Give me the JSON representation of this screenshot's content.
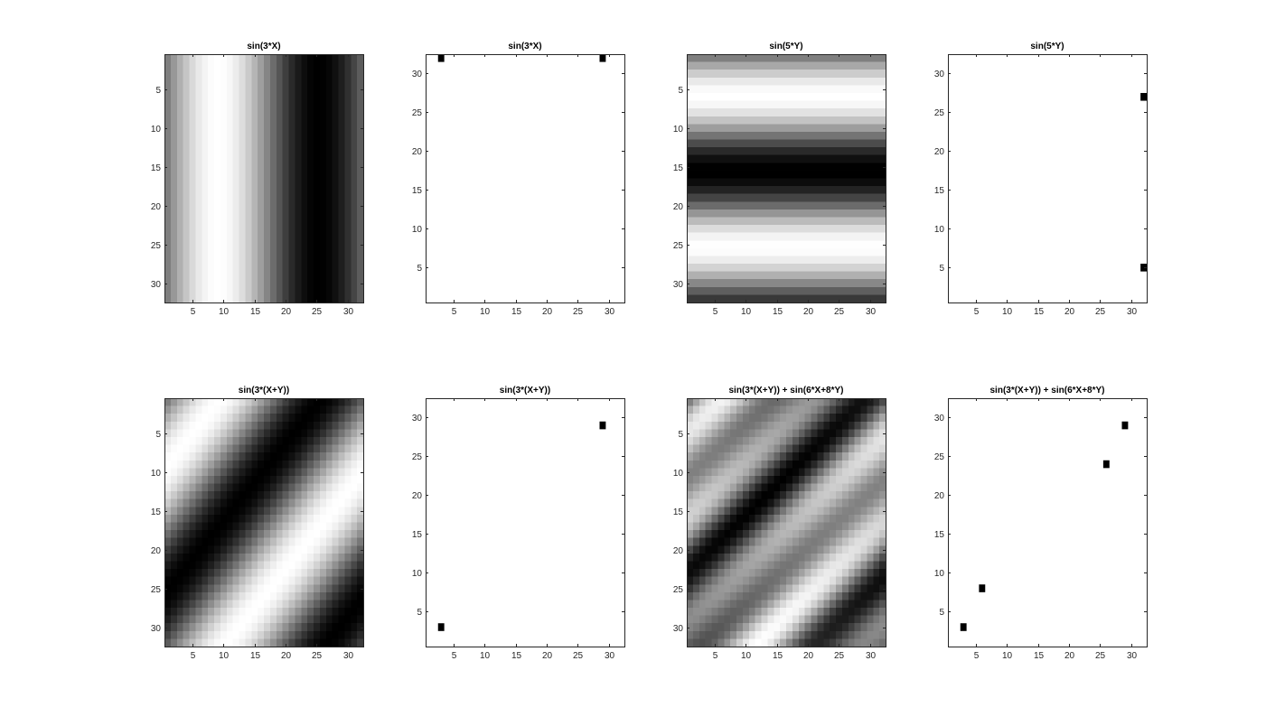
{
  "figure": {
    "background": "#ffffff",
    "axis_color": "#262626"
  },
  "chart_data": [
    {
      "type": "heatmap",
      "title": "sin(3*X)",
      "colormap": "gray",
      "grid_size": [
        32,
        32
      ],
      "formula": "sin(3*X)",
      "x_range": [
        0,
        2
      ],
      "y_range": [
        0,
        2
      ],
      "xlim": [
        0.5,
        32.5
      ],
      "ylim": [
        0.5,
        32.5
      ],
      "y_direction": "reverse",
      "xticks": [
        5,
        10,
        15,
        20,
        25,
        30
      ],
      "yticks": [
        5,
        10,
        15,
        20,
        25,
        30
      ]
    },
    {
      "type": "scatter",
      "title": "sin(3*X)",
      "marker": "square",
      "marker_color": "#000000",
      "points": [
        [
          3,
          32
        ],
        [
          29,
          32
        ]
      ],
      "xlim": [
        0.5,
        32.5
      ],
      "ylim": [
        0.5,
        32.5
      ],
      "y_direction": "normal",
      "xticks": [
        5,
        10,
        15,
        20,
        25,
        30
      ],
      "yticks": [
        5,
        10,
        15,
        20,
        25,
        30
      ]
    },
    {
      "type": "heatmap",
      "title": "sin(5*Y)",
      "colormap": "gray",
      "grid_size": [
        32,
        32
      ],
      "formula": "sin(5*Y)",
      "x_range": [
        0,
        2
      ],
      "y_range": [
        0,
        2
      ],
      "xlim": [
        0.5,
        32.5
      ],
      "ylim": [
        0.5,
        32.5
      ],
      "y_direction": "reverse",
      "xticks": [
        5,
        10,
        15,
        20,
        25,
        30
      ],
      "yticks": [
        5,
        10,
        15,
        20,
        25,
        30
      ]
    },
    {
      "type": "scatter",
      "title": "sin(5*Y)",
      "marker": "square",
      "marker_color": "#000000",
      "points": [
        [
          32,
          27
        ],
        [
          32,
          5
        ]
      ],
      "xlim": [
        0.5,
        32.5
      ],
      "ylim": [
        0.5,
        32.5
      ],
      "y_direction": "normal",
      "xticks": [
        5,
        10,
        15,
        20,
        25,
        30
      ],
      "yticks": [
        5,
        10,
        15,
        20,
        25,
        30
      ]
    },
    {
      "type": "heatmap",
      "title": "sin(3*(X+Y))",
      "colormap": "gray",
      "grid_size": [
        32,
        32
      ],
      "formula": "sin(3*(X+Y))",
      "x_range": [
        0,
        2
      ],
      "y_range": [
        0,
        2
      ],
      "xlim": [
        0.5,
        32.5
      ],
      "ylim": [
        0.5,
        32.5
      ],
      "y_direction": "reverse",
      "xticks": [
        5,
        10,
        15,
        20,
        25,
        30
      ],
      "yticks": [
        5,
        10,
        15,
        20,
        25,
        30
      ]
    },
    {
      "type": "scatter",
      "title": "sin(3*(X+Y))",
      "marker": "square",
      "marker_color": "#000000",
      "points": [
        [
          29,
          29
        ],
        [
          3,
          3
        ]
      ],
      "xlim": [
        0.5,
        32.5
      ],
      "ylim": [
        0.5,
        32.5
      ],
      "y_direction": "normal",
      "xticks": [
        5,
        10,
        15,
        20,
        25,
        30
      ],
      "yticks": [
        5,
        10,
        15,
        20,
        25,
        30
      ]
    },
    {
      "type": "heatmap",
      "title": "sin(3*(X+Y)) + sin(6*X+8*Y)",
      "colormap": "gray",
      "grid_size": [
        32,
        32
      ],
      "formula": "sin(3*(X+Y)) + sin(6*X+8*Y)",
      "x_range": [
        0,
        2
      ],
      "y_range": [
        0,
        2
      ],
      "xlim": [
        0.5,
        32.5
      ],
      "ylim": [
        0.5,
        32.5
      ],
      "y_direction": "reverse",
      "xticks": [
        5,
        10,
        15,
        20,
        25,
        30
      ],
      "yticks": [
        5,
        10,
        15,
        20,
        25,
        30
      ]
    },
    {
      "type": "scatter",
      "title": "sin(3*(X+Y)) + sin(6*X+8*Y)",
      "marker": "square",
      "marker_color": "#000000",
      "points": [
        [
          3,
          3
        ],
        [
          6,
          8
        ],
        [
          26,
          24
        ],
        [
          29,
          29
        ]
      ],
      "xlim": [
        0.5,
        32.5
      ],
      "ylim": [
        0.5,
        32.5
      ],
      "y_direction": "normal",
      "xticks": [
        5,
        10,
        15,
        20,
        25,
        30
      ],
      "yticks": [
        5,
        10,
        15,
        20,
        25,
        30
      ]
    }
  ]
}
